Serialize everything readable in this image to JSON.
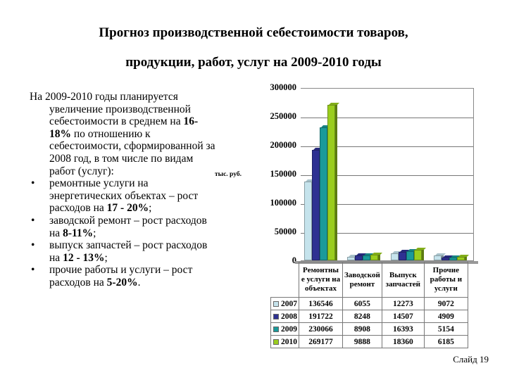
{
  "title": {
    "line1": "Прогноз производственной себестоимости товаров,",
    "line2": "продукции, работ, услуг на 2009-2010 годы"
  },
  "text": {
    "intro_prefix": "На 2009-2010 годы планируется увеличение производственной себестоимости в среднем на ",
    "intro_bold": "16-18%",
    "intro_suffix": " по отношению к себестоимости, сформированной за 2008 год, в том числе по видам работ (услуг):",
    "bullet_symbol": "•",
    "bullets": [
      {
        "prefix": "ремонтные услуги на энергетических объектах – рост расходов на ",
        "bold": "17 - 20%",
        "suffix": ";"
      },
      {
        "prefix": "заводской ремонт – рост расходов на ",
        "bold": "8-11%",
        "suffix": ";"
      },
      {
        "prefix": "выпуск запчастей – рост расходов на ",
        "bold": "12 - 13%",
        "suffix": ";"
      },
      {
        "prefix": "прочие работы и услуги – рост расходов на ",
        "bold": "5-20%",
        "suffix": "."
      }
    ]
  },
  "footer": {
    "slide_label": "Слайд 19"
  },
  "chart_data": {
    "type": "bar",
    "subtype": "3d-clustered-column",
    "title": "",
    "ylabel": "тыс. руб.",
    "xlabel": "",
    "ylim": [
      0,
      300000
    ],
    "yticks": [
      "300000",
      "250000",
      "200000",
      "150000",
      "100000",
      "50000",
      "0"
    ],
    "grid": true,
    "legend_position": "data-table",
    "categories": [
      "Ремонтные услуги на объектах",
      "Заводской ремонт",
      "Выпуск запчастей",
      "Прочие работы и услуги"
    ],
    "category_labels_display": [
      [
        "Ремонтны",
        "е услуги на",
        "объектах"
      ],
      [
        "Заводской",
        "ремонт"
      ],
      [
        "Выпуск",
        "запчастей"
      ],
      [
        "Прочие",
        "работы и",
        "услуги"
      ]
    ],
    "series": [
      {
        "name": "2007",
        "color": "#c5e3ec",
        "values": [
          136546,
          6055,
          12273,
          9072
        ]
      },
      {
        "name": "2008",
        "color": "#2e3192",
        "values": [
          191722,
          8248,
          14507,
          4909
        ]
      },
      {
        "name": "2009",
        "color": "#1a9a9a",
        "values": [
          230066,
          8908,
          16393,
          5154
        ]
      },
      {
        "name": "2010",
        "color": "#9acd1e",
        "values": [
          269177,
          9888,
          18360,
          6185
        ]
      }
    ]
  }
}
